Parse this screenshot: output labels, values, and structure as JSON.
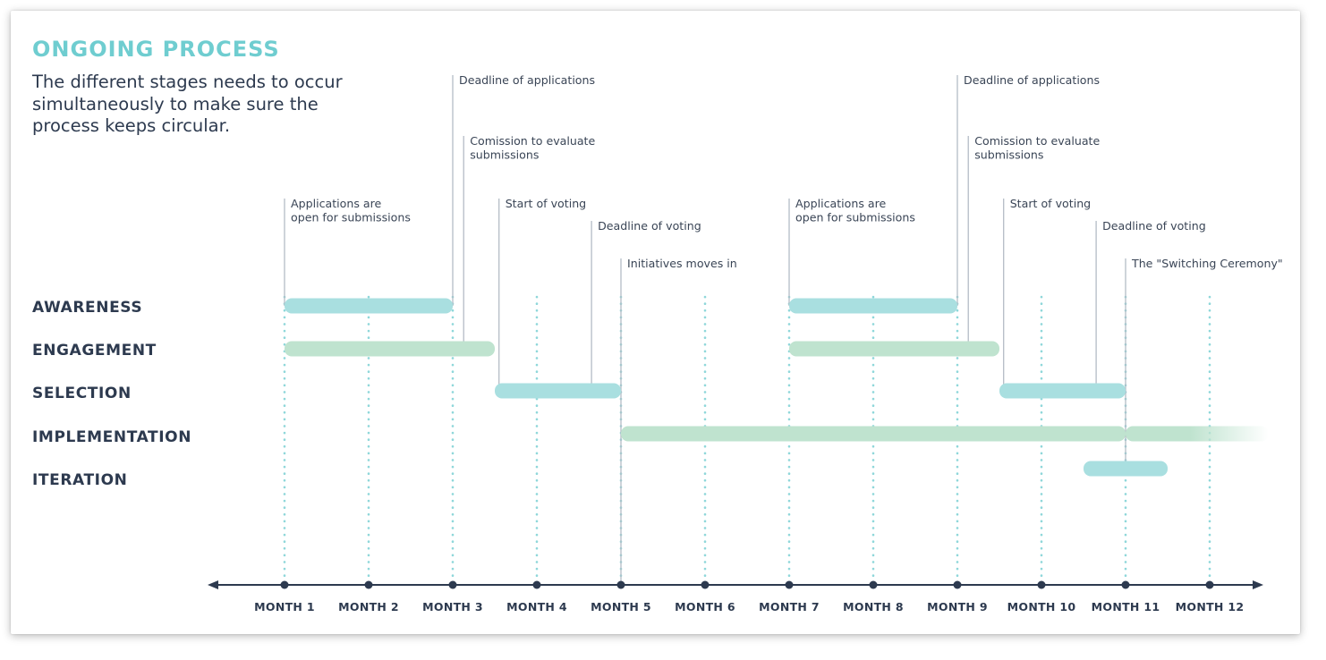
{
  "header": {
    "title": "ONGOING PROCESS",
    "subtitle": "The different stages needs to occur simultaneously to make sure the process keeps circular."
  },
  "rows": [
    "AWARENESS",
    "ENGAGEMENT",
    "SELECTION",
    "IMPLEMENTATION",
    "ITERATION"
  ],
  "months": [
    "MONTH 1",
    "MONTH 2",
    "MONTH 3",
    "MONTH 4",
    "MONTH 5",
    "MONTH 6",
    "MONTH 7",
    "MONTH 8",
    "MONTH 9",
    "MONTH 10",
    "MONTH 11",
    "MONTH 12"
  ],
  "events": [
    {
      "lines": [
        "Deadline of applications"
      ],
      "at": 3
    },
    {
      "lines": [
        "Comission to evaluate",
        "submissions"
      ],
      "at": 3.13
    },
    {
      "lines": [
        "Applications are",
        "open for submissions"
      ],
      "at": 1
    },
    {
      "lines": [
        "Start of voting"
      ],
      "at": 3.55
    },
    {
      "lines": [
        "Deadline of voting"
      ],
      "at": 4.65
    },
    {
      "lines": [
        "Initiatives moves in"
      ],
      "at": 5
    },
    {
      "lines": [
        "Deadline of applications"
      ],
      "at": 9
    },
    {
      "lines": [
        "Comission to evaluate",
        "submissions"
      ],
      "at": 9.13
    },
    {
      "lines": [
        "Applications are",
        "open for submissions"
      ],
      "at": 7
    },
    {
      "lines": [
        "Start of voting"
      ],
      "at": 9.55
    },
    {
      "lines": [
        "Deadline of voting"
      ],
      "at": 10.65
    },
    {
      "lines": [
        "The \"Switching Ceremony\""
      ],
      "at": 11
    }
  ],
  "bars": [
    {
      "row": 0,
      "start": 1,
      "end": 3,
      "color": "#a9dfe0"
    },
    {
      "row": 0,
      "start": 7,
      "end": 9,
      "color": "#a9dfe0"
    },
    {
      "row": 1,
      "start": 1,
      "end": 3.5,
      "color": "#bfe3cf"
    },
    {
      "row": 1,
      "start": 7,
      "end": 9.5,
      "color": "#bfe3cf"
    },
    {
      "row": 2,
      "start": 3.5,
      "end": 5,
      "color": "#a9dfe0"
    },
    {
      "row": 2,
      "start": 9.5,
      "end": 11,
      "color": "#a9dfe0"
    },
    {
      "row": 3,
      "start": 5,
      "end": 11,
      "color": "#bfe3cf"
    },
    {
      "row": 3,
      "start": 11,
      "end": 12.7,
      "color": "#bfe3cf",
      "fade": true
    },
    {
      "row": 4,
      "start": 10.5,
      "end": 11.5,
      "color": "#a9dfe0"
    }
  ],
  "colors": {
    "accent": "#6fcdd0",
    "text": "#2d3a4f",
    "axis": "#2d3a4f",
    "grid": "#8fd7da"
  }
}
